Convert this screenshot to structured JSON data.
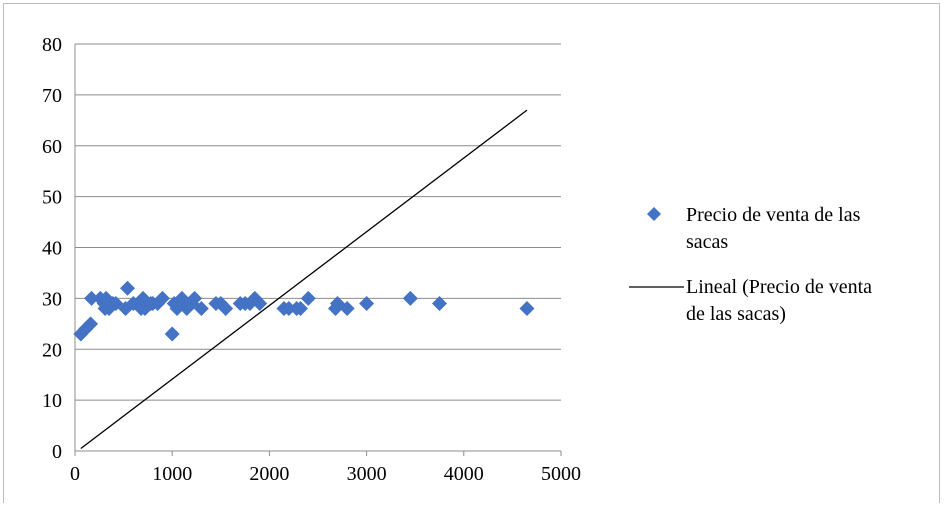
{
  "chart_data": {
    "type": "scatter",
    "title": "",
    "xlabel": "",
    "ylabel": "",
    "xlim": [
      0,
      5000
    ],
    "ylim": [
      0,
      80
    ],
    "xticks": [
      "0",
      "1000",
      "2000",
      "3000",
      "4000",
      "5000"
    ],
    "yticks": [
      "0",
      "10",
      "20",
      "30",
      "40",
      "50",
      "60",
      "70",
      "80"
    ],
    "grid": "horizontal",
    "legend_position": "right",
    "series": [
      {
        "name": "Precio de venta de las sacas",
        "color": "#4472c4",
        "marker": "diamond",
        "points": [
          [
            60,
            23
          ],
          [
            110,
            24
          ],
          [
            160,
            25
          ],
          [
            170,
            30
          ],
          [
            260,
            30
          ],
          [
            300,
            29
          ],
          [
            310,
            28
          ],
          [
            320,
            30
          ],
          [
            350,
            28
          ],
          [
            390,
            29
          ],
          [
            420,
            29
          ],
          [
            520,
            28
          ],
          [
            540,
            32
          ],
          [
            600,
            29
          ],
          [
            650,
            29
          ],
          [
            680,
            28
          ],
          [
            700,
            30
          ],
          [
            720,
            28
          ],
          [
            780,
            29
          ],
          [
            800,
            29
          ],
          [
            850,
            29
          ],
          [
            900,
            30
          ],
          [
            1000,
            23
          ],
          [
            1020,
            29
          ],
          [
            1050,
            28
          ],
          [
            1100,
            30
          ],
          [
            1130,
            29
          ],
          [
            1150,
            28
          ],
          [
            1200,
            29
          ],
          [
            1230,
            30
          ],
          [
            1300,
            28
          ],
          [
            1450,
            29
          ],
          [
            1500,
            29
          ],
          [
            1550,
            28
          ],
          [
            1700,
            29
          ],
          [
            1750,
            29
          ],
          [
            1800,
            29
          ],
          [
            1850,
            30
          ],
          [
            1900,
            29
          ],
          [
            2150,
            28
          ],
          [
            2200,
            28
          ],
          [
            2280,
            28
          ],
          [
            2320,
            28
          ],
          [
            2400,
            30
          ],
          [
            2680,
            28
          ],
          [
            2700,
            29
          ],
          [
            2800,
            28
          ],
          [
            3000,
            29
          ],
          [
            3450,
            30
          ],
          [
            3750,
            29
          ],
          [
            4650,
            28
          ]
        ]
      },
      {
        "name": "Lineal (Precio de venta de las sacas)",
        "color": "#000000",
        "type": "line",
        "points": [
          [
            60,
            0.5
          ],
          [
            4650,
            67
          ]
        ]
      }
    ]
  }
}
